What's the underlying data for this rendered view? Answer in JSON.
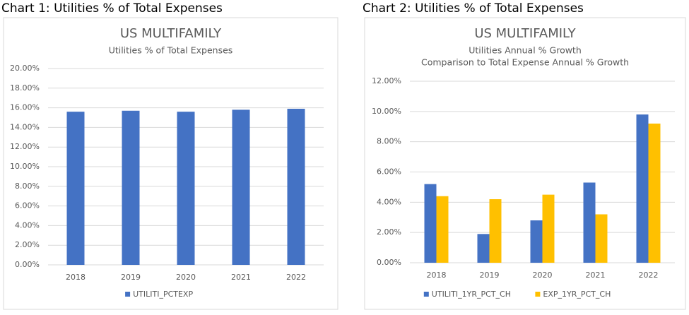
{
  "chart_data": [
    {
      "type": "bar",
      "caption": "Chart 1: Utilities % of Total Expenses",
      "title": "US MULTIFAMILY",
      "subtitle": [
        "Utilities % of Total Expenses"
      ],
      "categories": [
        "2018",
        "2019",
        "2020",
        "2021",
        "2022"
      ],
      "series": [
        {
          "name": "UTILITI_PCTEXP",
          "color": "#4472c4",
          "values": [
            15.6,
            15.7,
            15.6,
            15.8,
            15.9
          ]
        }
      ],
      "ylim": [
        0,
        20
      ],
      "yticks": [
        {
          "value": 0,
          "label": "0.00%"
        },
        {
          "value": 2,
          "label": "2.00%"
        },
        {
          "value": 4,
          "label": "4.00%"
        },
        {
          "value": 6,
          "label": "6.00%"
        },
        {
          "value": 8,
          "label": "8.00%"
        },
        {
          "value": 10,
          "label": "10.00%"
        },
        {
          "value": 12,
          "label": "12.00%"
        },
        {
          "value": 14,
          "label": "14.00%"
        },
        {
          "value": 16,
          "label": "16.00%"
        },
        {
          "value": 18,
          "label": "18.00%"
        },
        {
          "value": 20,
          "label": "20.00%"
        }
      ],
      "grid": true,
      "legend": "bottom"
    },
    {
      "type": "bar",
      "caption": "Chart 2: Utilities % of Total Expenses",
      "title": "US MULTIFAMILY",
      "subtitle": [
        "Utilities Annual % Growth",
        "Comparison to Total Expense Annual % Growth"
      ],
      "categories": [
        "2018",
        "2019",
        "2020",
        "2021",
        "2022"
      ],
      "series": [
        {
          "name": "UTILITI_1YR_PCT_CH",
          "color": "#4472c4",
          "values": [
            5.2,
            1.9,
            2.8,
            5.3,
            9.8
          ]
        },
        {
          "name": "EXP_1YR_PCT_CH",
          "color": "#ffc000",
          "values": [
            4.4,
            4.2,
            4.5,
            3.2,
            9.2
          ]
        }
      ],
      "ylim": [
        0,
        12
      ],
      "yticks": [
        {
          "value": 0,
          "label": "0.00%"
        },
        {
          "value": 2,
          "label": "2.00%"
        },
        {
          "value": 4,
          "label": "4.00%"
        },
        {
          "value": 6,
          "label": "6.00%"
        },
        {
          "value": 8,
          "label": "8.00%"
        },
        {
          "value": 10,
          "label": "10.00%"
        },
        {
          "value": 12,
          "label": "12.00%"
        }
      ],
      "grid": true,
      "legend": "bottom"
    }
  ]
}
